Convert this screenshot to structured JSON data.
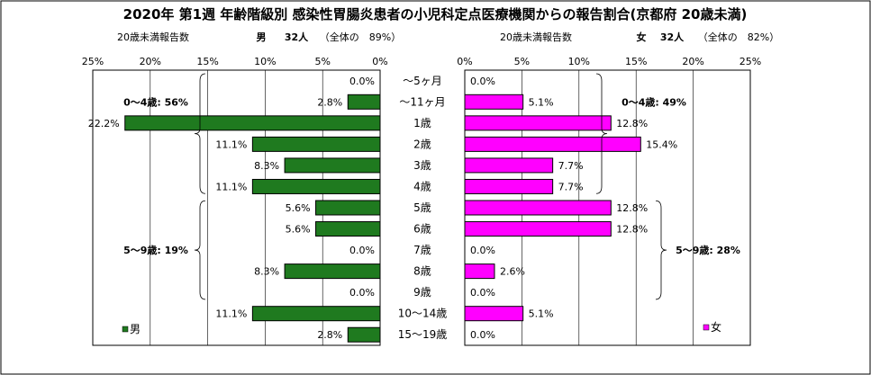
{
  "chart_data": {
    "type": "bar",
    "title": "2020年 第1週 年齢階級別 感染性胃腸炎患者の小児科定点医療機関からの報告割合(京都府 20歳未満)",
    "categories": [
      "～5ヶ月",
      "～11ヶ月",
      "1歳",
      "2歳",
      "3歳",
      "4歳",
      "5歳",
      "6歳",
      "7歳",
      "8歳",
      "9歳",
      "10～14歳",
      "15～19歳"
    ],
    "xlim": [
      0,
      25
    ],
    "ticks": [
      "0%",
      "5%",
      "10%",
      "15%",
      "20%",
      "25%"
    ],
    "grid": true,
    "series": [
      {
        "name": "男",
        "color": "#1f7a1f",
        "axis_label": "20歳未満報告数",
        "header": {
          "sex": "男",
          "count": "32人",
          "share": "（全体の　89%）"
        },
        "values": [
          0.0,
          2.8,
          22.2,
          11.1,
          8.3,
          11.1,
          5.6,
          5.6,
          0.0,
          8.3,
          0.0,
          11.1,
          2.8
        ],
        "labels": [
          "0.0%",
          "2.8%",
          "22.2%",
          "11.1%",
          "8.3%",
          "11.1%",
          "5.6%",
          "5.6%",
          "0.0%",
          "8.3%",
          "0.0%",
          "11.1%",
          "2.8%"
        ],
        "groups": [
          {
            "label": "0～4歳: 56%",
            "from": 0,
            "to": 5
          },
          {
            "label": "5～9歳: 19%",
            "from": 6,
            "to": 10
          }
        ]
      },
      {
        "name": "女",
        "color": "#ff00ff",
        "axis_label": "20歳未満報告数",
        "header": {
          "sex": "女",
          "count": "32人",
          "share": "（全体の　82%）"
        },
        "values": [
          0.0,
          5.1,
          12.8,
          15.4,
          7.7,
          7.7,
          12.8,
          12.8,
          0.0,
          2.6,
          0.0,
          5.1,
          0.0
        ],
        "labels": [
          "0.0%",
          "5.1%",
          "12.8%",
          "15.4%",
          "7.7%",
          "7.7%",
          "12.8%",
          "12.8%",
          "0.0%",
          "2.6%",
          "0.0%",
          "5.1%",
          "0.0%"
        ],
        "groups": [
          {
            "label": "0～4歳: 49%",
            "from": 0,
            "to": 5
          },
          {
            "label": "5～9歳: 28%",
            "from": 6,
            "to": 10
          }
        ]
      }
    ]
  }
}
